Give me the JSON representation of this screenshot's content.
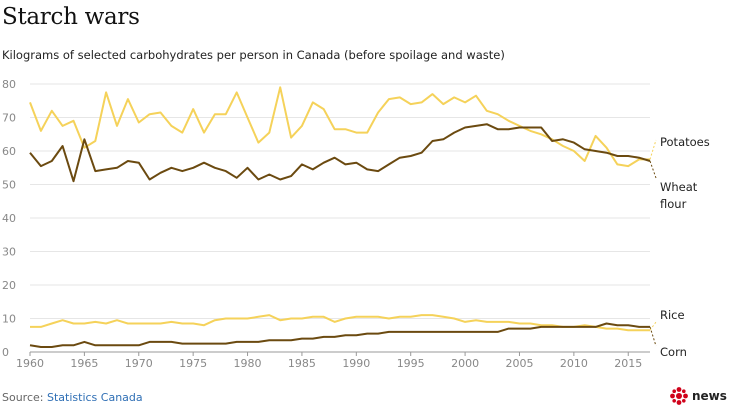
{
  "title": "Starch wars",
  "subtitle": "Kilograms of selected carbohydrates per person in Canada (before spoilage and waste)",
  "source": {
    "label": "Source:",
    "name": "Statistics Canada"
  },
  "logo": {
    "text": "news",
    "icon": "cbc-gem-icon"
  },
  "chart_data": {
    "type": "line",
    "x": [
      1960,
      1961,
      1962,
      1963,
      1964,
      1965,
      1966,
      1967,
      1968,
      1969,
      1970,
      1971,
      1972,
      1973,
      1974,
      1975,
      1976,
      1977,
      1978,
      1979,
      1980,
      1981,
      1982,
      1983,
      1984,
      1985,
      1986,
      1987,
      1988,
      1989,
      1990,
      1991,
      1992,
      1993,
      1994,
      1995,
      1996,
      1997,
      1998,
      1999,
      2000,
      2001,
      2002,
      2003,
      2004,
      2005,
      2006,
      2007,
      2008,
      2009,
      2010,
      2011,
      2012,
      2013,
      2014,
      2015,
      2016,
      2017
    ],
    "xticks": [
      1960,
      1965,
      1970,
      1975,
      1980,
      1985,
      1990,
      1995,
      2000,
      2005,
      2010,
      2015
    ],
    "yticks": [
      0,
      10,
      20,
      30,
      40,
      50,
      60,
      70,
      80
    ],
    "xlim": [
      1960,
      2017
    ],
    "ylim": [
      0,
      80
    ],
    "grid": true,
    "series": [
      {
        "name": "Potatoes",
        "color": "#f5d25a",
        "values": [
          74.5,
          66,
          72,
          67.5,
          69,
          61,
          63,
          77.5,
          67.5,
          75.5,
          68.5,
          71,
          71.5,
          67.5,
          65.5,
          72.5,
          65.5,
          71,
          71,
          77.5,
          70,
          62.5,
          65.5,
          79,
          64,
          67.5,
          74.5,
          72.5,
          66.5,
          66.5,
          65.5,
          65.5,
          71.5,
          75.5,
          76,
          74,
          74.5,
          77,
          74,
          76,
          74.5,
          76.5,
          72,
          71,
          69,
          67.5,
          66,
          65,
          63.5,
          61.5,
          60,
          57,
          64.5,
          61,
          56,
          55.5,
          57.5,
          57.5
        ]
      },
      {
        "name": "Wheat flour",
        "color": "#6b4a10",
        "values": [
          59.5,
          55.5,
          57,
          61.5,
          51,
          63.5,
          54,
          54.5,
          55,
          57,
          56.5,
          51.5,
          53.5,
          55,
          54,
          55,
          56.5,
          55,
          54,
          52,
          55,
          51.5,
          53,
          51.5,
          52.5,
          56,
          54.5,
          56.5,
          58,
          56,
          56.5,
          54.5,
          54,
          56,
          58,
          58.5,
          59.5,
          63,
          63.5,
          65.5,
          67,
          67.5,
          68,
          66.5,
          66.5,
          67,
          67,
          67,
          63,
          63.5,
          62.5,
          60.5,
          60,
          59.5,
          58.5,
          58.5,
          58,
          57
        ]
      },
      {
        "name": "Rice",
        "color": "#f5d25a",
        "values": [
          7.5,
          7.5,
          8.5,
          9.5,
          8.5,
          8.5,
          9,
          8.5,
          9.5,
          8.5,
          8.5,
          8.5,
          8.5,
          9,
          8.5,
          8.5,
          8,
          9.5,
          10,
          10,
          10,
          10.5,
          11,
          9.5,
          10,
          10,
          10.5,
          10.5,
          9,
          10,
          10.5,
          10.5,
          10.5,
          10,
          10.5,
          10.5,
          11,
          11,
          10.5,
          10,
          9,
          9.5,
          9,
          9,
          9,
          8.5,
          8.5,
          8,
          8,
          7.5,
          7.5,
          8,
          7.5,
          7,
          7,
          6.5,
          6.5,
          6.5
        ]
      },
      {
        "name": "Corn",
        "color": "#6b4a10",
        "values": [
          2,
          1.5,
          1.5,
          2,
          2,
          3,
          2,
          2,
          2,
          2,
          2,
          3,
          3,
          3,
          2.5,
          2.5,
          2.5,
          2.5,
          2.5,
          3,
          3,
          3,
          3.5,
          3.5,
          3.5,
          4,
          4,
          4.5,
          4.5,
          5,
          5,
          5.5,
          5.5,
          6,
          6,
          6,
          6,
          6,
          6,
          6,
          6,
          6,
          6,
          6,
          7,
          7,
          7,
          7.5,
          7.5,
          7.5,
          7.5,
          7.5,
          7.5,
          8.5,
          8,
          8,
          7.5,
          7.5
        ]
      }
    ],
    "labels": {
      "potatoes": "Potatoes",
      "wheat_1": "Wheat",
      "wheat_2": "flour",
      "rice": "Rice",
      "corn": "Corn"
    }
  }
}
